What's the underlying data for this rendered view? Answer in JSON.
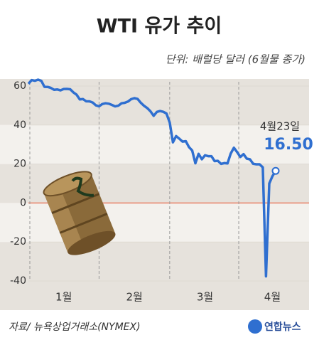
{
  "chart_data": {
    "type": "line",
    "title": "WTI 유가 추이",
    "subtitle": "단위: 배럴당 달러 (6월물 종가)",
    "source": "자료/ 뉴욕상업거래소(NYMEX)",
    "logo": "연합뉴스",
    "annotation": "4월23일",
    "categories": [
      null,
      null,
      null,
      null,
      null,
      null,
      null,
      null,
      null,
      null,
      null,
      "1월",
      null,
      null,
      null,
      null,
      null,
      null,
      null,
      null,
      null,
      null,
      null,
      null,
      null,
      null,
      null,
      null,
      null,
      null,
      null,
      null,
      null,
      "2월",
      null,
      null,
      null,
      null,
      null,
      null,
      null,
      null,
      null,
      null,
      null,
      null,
      null,
      null,
      null,
      null,
      null,
      null,
      null,
      null,
      null,
      "3월",
      null,
      null,
      null,
      null,
      null,
      null,
      null,
      null,
      null,
      null,
      null,
      null,
      null,
      null,
      null,
      null,
      null,
      null,
      null,
      null,
      "4월",
      null
    ],
    "series": [
      {
        "name": "WTI",
        "color": "#2f6fd0",
        "values": [
          61.18,
          63.05,
          62.7,
          63.27,
          62.7,
          59.61,
          59.56,
          59.04,
          58.08,
          58.23,
          57.81,
          58.52,
          58.54,
          58.34,
          56.74,
          55.59,
          53.14,
          53.33,
          52.19,
          52.14,
          51.56,
          50.11,
          49.61,
          50.75,
          51.17,
          50.95,
          50.32,
          49.57,
          49.94,
          51.17,
          51.42,
          52.05,
          53.29,
          53.78,
          53.38,
          51.43,
          49.9,
          48.73,
          47.09,
          44.76,
          46.75,
          47.18,
          46.78,
          45.9,
          41.28,
          31.13,
          34.36,
          32.98,
          31.5,
          31.73,
          28.7,
          26.95,
          20.37,
          25.22,
          22.43,
          24.49,
          24.01,
          24.01,
          21.51,
          21.65,
          20.09,
          20.48,
          20.31,
          25.32,
          28.34,
          26.08,
          23.63,
          25.09,
          22.76,
          22.41,
          20.11,
          19.87,
          19.87,
          18.27,
          -37.63,
          10.01,
          13.78,
          16.5
        ],
        "value_labels": [
          null,
          null,
          null,
          null,
          null,
          null,
          null,
          null,
          null,
          null,
          null,
          null,
          null,
          null,
          null,
          null,
          null,
          null,
          null,
          null,
          null,
          null,
          null,
          null,
          null,
          null,
          null,
          null,
          null,
          null,
          null,
          null,
          null,
          null,
          null,
          null,
          null,
          null,
          null,
          null,
          null,
          null,
          null,
          null,
          null,
          null,
          null,
          null,
          null,
          null,
          null,
          null,
          null,
          null,
          null,
          null,
          null,
          null,
          null,
          null,
          null,
          null,
          null,
          null,
          null,
          null,
          null,
          null,
          null,
          null,
          null,
          null,
          null,
          null,
          null,
          null,
          null,
          "16.50"
        ]
      }
    ],
    "ylim": [
      -40,
      60
    ],
    "yticks": [
      -40,
      -20,
      0,
      20,
      40,
      60
    ],
    "zero_line_color": "#e8826a"
  }
}
